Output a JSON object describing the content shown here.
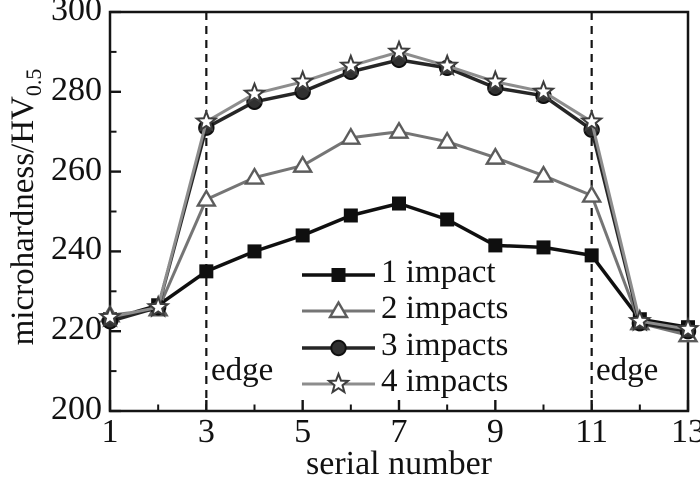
{
  "figure": {
    "background_color": "#ffffff",
    "axis_color": "#141414"
  },
  "chart_data": {
    "type": "line",
    "title": "",
    "xlabel": "serial number",
    "ylabel": "microhardness/HV0.5",
    "ylabel_main": "microhardness/HV",
    "ylabel_sub": "0.5",
    "xlim": [
      1,
      13
    ],
    "ylim": [
      200,
      300
    ],
    "x_ticks": [
      1,
      3,
      5,
      7,
      9,
      11,
      13
    ],
    "x_minor_ticks": [
      2,
      4,
      6,
      8,
      10,
      12
    ],
    "y_ticks": [
      300,
      280,
      260,
      240,
      220,
      200
    ],
    "y_minor_ticks": [
      210,
      230,
      250,
      270,
      290
    ],
    "grid": false,
    "legend": {
      "position": "inside-bottom-center"
    },
    "x": [
      1,
      2,
      3,
      4,
      5,
      6,
      7,
      8,
      9,
      10,
      11,
      12,
      13
    ],
    "series": [
      {
        "name": "1 impact",
        "marker": "square",
        "line_color": "#0f0f0f",
        "line_width": 3.5,
        "marker_fill": "#0f0f0f",
        "marker_stroke": "#0f0f0f",
        "values": [
          223,
          226.5,
          235,
          240,
          244,
          249,
          252,
          248,
          241.5,
          241,
          239,
          223,
          221
        ]
      },
      {
        "name": "2 impacts",
        "marker": "triangle",
        "line_color": "#757575",
        "line_width": 3,
        "marker_fill": "#ffffff",
        "marker_stroke": "#5c5c5c",
        "values": [
          224,
          225.5,
          253,
          258.5,
          261.5,
          268.5,
          270,
          267.5,
          263.5,
          259,
          254,
          222,
          219
        ]
      },
      {
        "name": "3 impacts",
        "marker": "circle",
        "line_color": "#262626",
        "line_width": 3.5,
        "marker_fill": "#303030",
        "marker_stroke": "#0f0f0f",
        "values": [
          222.5,
          226,
          271,
          277.5,
          280,
          285,
          288,
          286,
          281,
          279,
          270.5,
          222,
          220
        ]
      },
      {
        "name": "4 impacts",
        "marker": "star",
        "line_color": "#8d8d8d",
        "line_width": 3,
        "marker_fill": "#ffffff",
        "marker_stroke": "#3d3d3d",
        "values": [
          223.5,
          226,
          272.5,
          279.5,
          282.5,
          286.5,
          290,
          286.5,
          282.5,
          280,
          272.5,
          222.5,
          220.5
        ]
      }
    ],
    "vlines": [
      {
        "x": 3,
        "label": "edge",
        "style": "dashed",
        "color": "#141414"
      },
      {
        "x": 11,
        "label": "edge",
        "style": "dashed",
        "color": "#141414"
      }
    ]
  }
}
